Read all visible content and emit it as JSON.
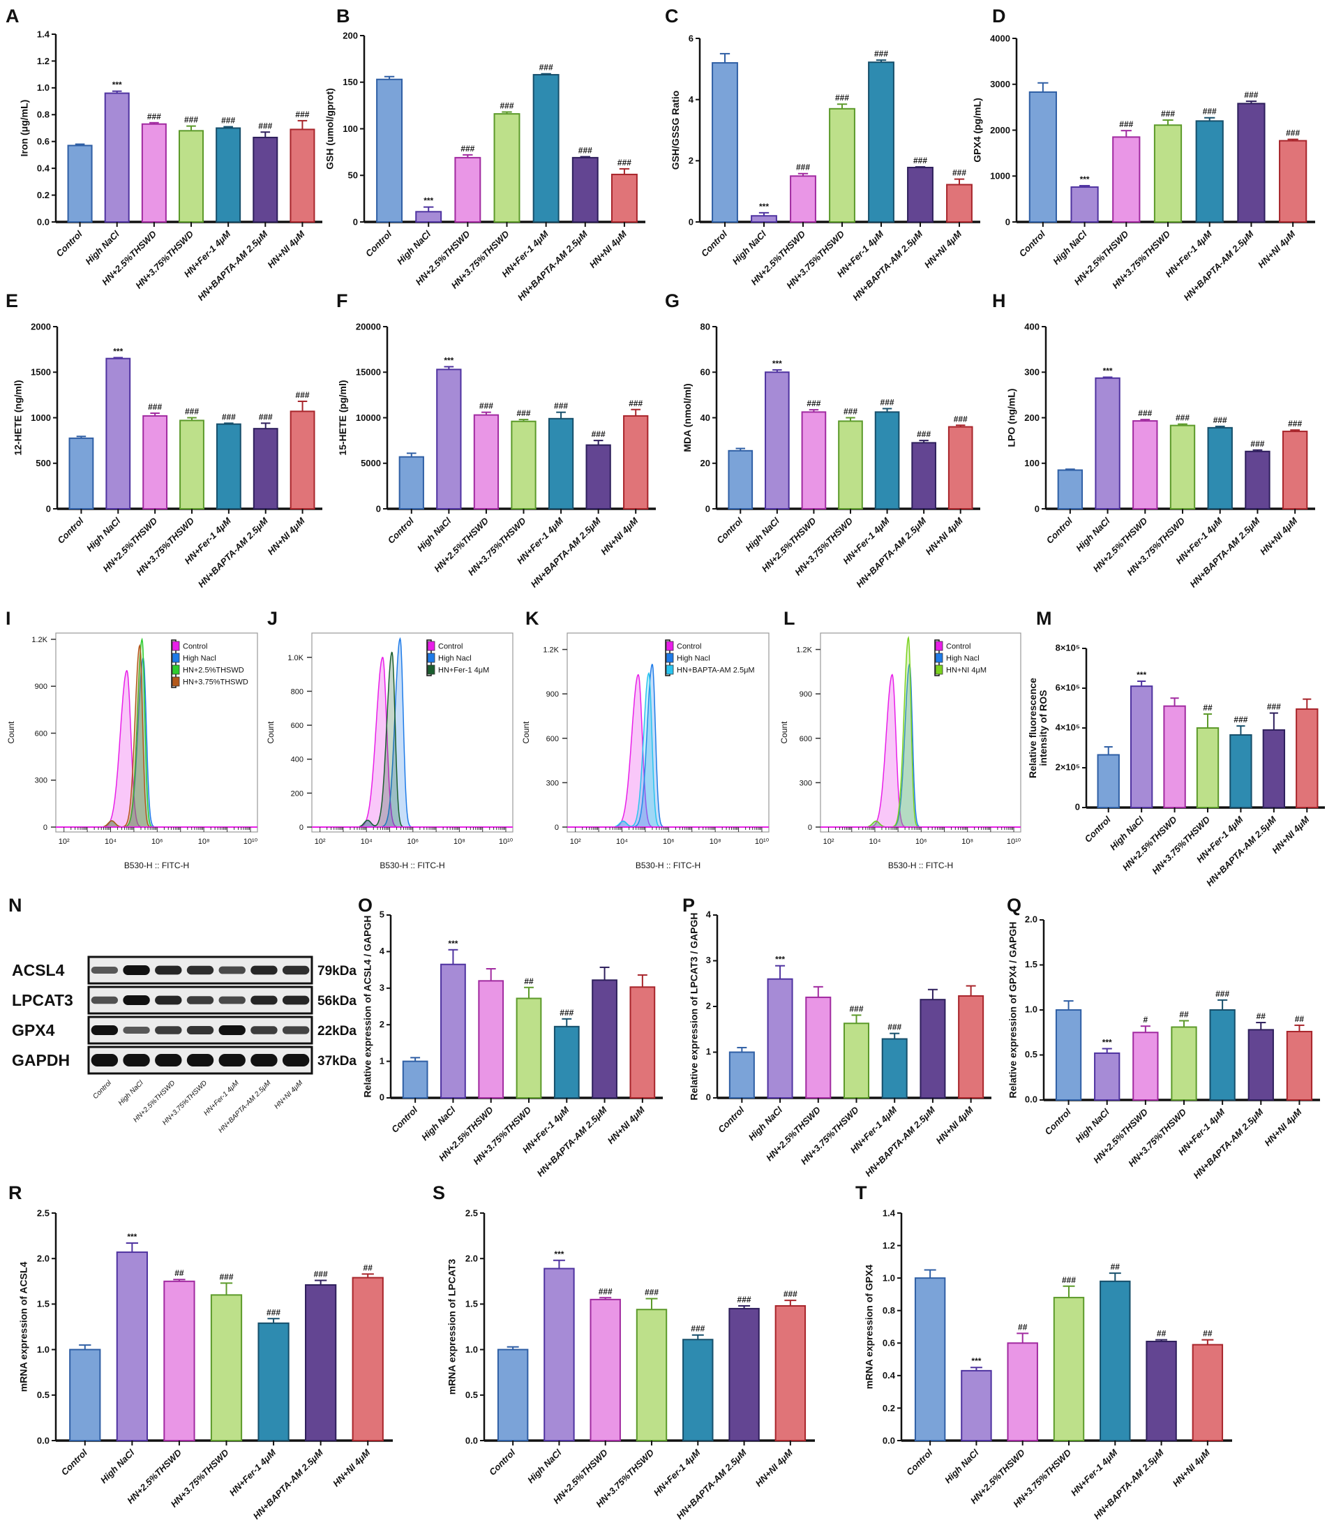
{
  "group_colors": {
    "fill": [
      "#7ba3d8",
      "#a68bd6",
      "#e996e6",
      "#bde08a",
      "#2e8bb0",
      "#634592",
      "#e07478"
    ],
    "stroke": [
      "#2f5fa5",
      "#4f33a0",
      "#a12aa0",
      "#5c9a2a",
      "#164f6b",
      "#2e1f5c",
      "#a8252b"
    ]
  },
  "western_blot": {
    "panel": "N",
    "lanes": [
      "Control",
      "High NaCl",
      "HN+2.5%THSWD",
      "HN+3.75%THSWD",
      "HN+Fer-1 4μM",
      "HN+BAPTA-AM 2.5μM",
      "HN+NI 4μM"
    ],
    "proteins": [
      {
        "name": "ACSL4",
        "kda": "79kDa",
        "intensity": [
          0.5,
          1.0,
          0.85,
          0.8,
          0.6,
          0.85,
          0.8
        ]
      },
      {
        "name": "LPCAT3",
        "kda": "56kDa",
        "intensity": [
          0.55,
          1.0,
          0.85,
          0.7,
          0.6,
          0.85,
          0.85
        ]
      },
      {
        "name": "GPX4",
        "kda": "22kDa",
        "intensity": [
          1.0,
          0.5,
          0.7,
          0.75,
          1.0,
          0.7,
          0.65
        ]
      },
      {
        "name": "GAPDH",
        "kda": "37kDa",
        "intensity": [
          1.0,
          1.0,
          1.0,
          1.0,
          1.0,
          1.0,
          1.0
        ]
      }
    ]
  },
  "chart_data": [
    {
      "panel": "A",
      "type": "bar",
      "ylabel": "Iron (μg/mL)",
      "ylim": [
        0,
        1.4
      ],
      "yticks": [
        0,
        0.2,
        0.4,
        0.6,
        0.8,
        1.0,
        1.2,
        1.4
      ],
      "yticklabels": [
        "0.0",
        "0.2",
        "0.4",
        "0.6",
        "0.8",
        "1.0",
        "1.2",
        "1.4"
      ],
      "categories": [
        "Control",
        "High NaCl",
        "HN+2.5%THSWD",
        "HN+3.75%THSWD",
        "HN+Fer-1 4μM",
        "HN+BAPTA-AM 2.5μM",
        "HN+NI 4μM"
      ],
      "values": [
        0.57,
        0.96,
        0.73,
        0.68,
        0.7,
        0.63,
        0.69
      ],
      "errors": [
        0.01,
        0.015,
        0.01,
        0.035,
        0.01,
        0.04,
        0.065
      ],
      "significance": [
        "",
        "***",
        "###",
        "###",
        "###",
        "###",
        "###"
      ]
    },
    {
      "panel": "B",
      "type": "bar",
      "ylabel": "GSH (umol/gprot)",
      "ylim": [
        0,
        200
      ],
      "yticks": [
        0,
        50,
        100,
        150,
        200
      ],
      "yticklabels": [
        "0",
        "50",
        "100",
        "150",
        "200"
      ],
      "categories": [
        "Control",
        "High NaCl",
        "HN+2.5%THSWD",
        "HN+3.75%THSWD",
        "HN+Fer-1 4μM",
        "HN+BAPTA-AM 2.5μM",
        "HN+NI 4μM"
      ],
      "values": [
        153,
        11,
        69,
        116,
        158,
        69,
        51
      ],
      "errors": [
        3,
        5,
        3,
        2,
        1,
        1,
        6
      ],
      "significance": [
        "",
        "***",
        "###",
        "###",
        "###",
        "###",
        "###"
      ]
    },
    {
      "panel": "C",
      "type": "bar",
      "ylabel": "GSH/GSSG Ratio",
      "ylim": [
        0,
        6
      ],
      "yticks": [
        0,
        2,
        4,
        6
      ],
      "yticklabels": [
        "0",
        "2",
        "4",
        "6"
      ],
      "categories": [
        "Control",
        "High NaCl",
        "HN+2.5%THSWD",
        "HN+3.75%THSWD",
        "HN+Fer-1 4μM",
        "HN+BAPTA-AM 2.5μM",
        "HN+NI 4μM"
      ],
      "values": [
        5.2,
        0.2,
        1.5,
        3.7,
        5.22,
        1.78,
        1.22
      ],
      "errors": [
        0.3,
        0.1,
        0.08,
        0.15,
        0.07,
        0.02,
        0.18
      ],
      "significance": [
        "",
        "***",
        "###",
        "###",
        "###",
        "###",
        "###"
      ]
    },
    {
      "panel": "D",
      "type": "bar",
      "ylabel": "GPX4 (pg/mL)",
      "ylim": [
        0,
        4000
      ],
      "yticks": [
        0,
        1000,
        2000,
        3000,
        4000
      ],
      "yticklabels": [
        "0",
        "1000",
        "2000",
        "3000",
        "4000"
      ],
      "categories": [
        "Control",
        "High NaCl",
        "HN+2.5%THSWD",
        "HN+3.75%THSWD",
        "HN+Fer-1 4μM",
        "HN+BAPTA-AM 2.5μM",
        "HN+NI 4μM"
      ],
      "values": [
        2830,
        760,
        1850,
        2110,
        2200,
        2580,
        1770
      ],
      "errors": [
        200,
        30,
        140,
        110,
        70,
        50,
        30
      ],
      "significance": [
        "",
        "***",
        "###",
        "###",
        "###",
        "###",
        "###"
      ]
    },
    {
      "panel": "E",
      "type": "bar",
      "ylabel": "12-HETE (ng/ml)",
      "ylim": [
        0,
        2000
      ],
      "yticks": [
        0,
        500,
        1000,
        1500,
        2000
      ],
      "yticklabels": [
        "0",
        "500",
        "1000",
        "1500",
        "2000"
      ],
      "categories": [
        "Control",
        "High NaCl",
        "HN+2.5%THSWD",
        "HN+3.75%THSWD",
        "HN+Fer-1 4μM",
        "HN+BAPTA-AM 2.5μM",
        "HN+NI 4μM"
      ],
      "values": [
        775,
        1650,
        1020,
        970,
        930,
        880,
        1070
      ],
      "errors": [
        20,
        10,
        30,
        30,
        10,
        60,
        110
      ],
      "significance": [
        "",
        "***",
        "###",
        "###",
        "###",
        "###",
        "###"
      ]
    },
    {
      "panel": "F",
      "type": "bar",
      "ylabel": "15-HETE (pg/ml)",
      "ylim": [
        0,
        20000
      ],
      "yticks": [
        0,
        5000,
        10000,
        15000,
        20000
      ],
      "yticklabels": [
        "0",
        "5000",
        "10000",
        "15000",
        "20000"
      ],
      "categories": [
        "Control",
        "High NaCl",
        "HN+2.5%THSWD",
        "HN+3.75%THSWD",
        "HN+Fer-1 4μM",
        "HN+BAPTA-AM 2.5μM",
        "HN+NI 4μM"
      ],
      "values": [
        5700,
        15300,
        10300,
        9600,
        9900,
        7000,
        10200
      ],
      "errors": [
        400,
        300,
        300,
        200,
        700,
        500,
        700
      ],
      "significance": [
        "",
        "***",
        "###",
        "###",
        "###",
        "###",
        "###"
      ]
    },
    {
      "panel": "G",
      "type": "bar",
      "ylabel": "MDA (nmol/ml)",
      "ylim": [
        0,
        80
      ],
      "yticks": [
        0,
        20,
        40,
        60,
        80
      ],
      "yticklabels": [
        "0",
        "20",
        "40",
        "60",
        "80"
      ],
      "categories": [
        "Control",
        "High NaCl",
        "HN+2.5%THSWD",
        "HN+3.75%THSWD",
        "HN+Fer-1 4μM",
        "HN+BAPTA-AM 2.5μM",
        "HN+NI 4μM"
      ],
      "values": [
        25.5,
        60,
        42.5,
        38.5,
        42.5,
        29,
        36
      ],
      "errors": [
        1,
        1,
        1,
        1.5,
        1.5,
        1,
        0.7
      ],
      "significance": [
        "",
        "***",
        "###",
        "###",
        "###",
        "###",
        "###"
      ]
    },
    {
      "panel": "H",
      "type": "bar",
      "ylabel": "LPO (ng/mL)",
      "ylim": [
        0,
        400
      ],
      "yticks": [
        0,
        100,
        200,
        300,
        400
      ],
      "yticklabels": [
        "0",
        "100",
        "200",
        "300",
        "400"
      ],
      "categories": [
        "Control",
        "High NaCl",
        "HN+2.5%THSWD",
        "HN+3.75%THSWD",
        "HN+Fer-1 4μM",
        "HN+BAPTA-AM 2.5μM",
        "HN+NI 4μM"
      ],
      "values": [
        85,
        287,
        193,
        183,
        178,
        126,
        170
      ],
      "errors": [
        2,
        2,
        3,
        3,
        3,
        3,
        3
      ],
      "significance": [
        "",
        "***",
        "###",
        "###",
        "###",
        "###",
        "###"
      ]
    },
    {
      "panel": "I",
      "type": "histogram",
      "xlabel": "B530-H :: FITC-H",
      "ylabel": "Count",
      "ymax": 1240,
      "yticks": [
        0,
        300,
        600,
        900,
        1200
      ],
      "yticklabels": [
        "0",
        "300",
        "600",
        "900",
        "1.2K"
      ],
      "xticks_log10": [
        2,
        4,
        6,
        8,
        10
      ],
      "xticklabels": [
        "10²",
        "10⁴",
        "10⁶",
        "10⁸",
        "10¹⁰"
      ],
      "series": [
        {
          "name": "Control",
          "color": "#e81ee8",
          "mode_log10": 4.7,
          "peak": 1000,
          "spread": 0.28
        },
        {
          "name": "High Nacl",
          "color": "#1e7be8",
          "mode_log10": 5.4,
          "peak": 1080,
          "spread": 0.22
        },
        {
          "name": "HN+2.5%THSWD",
          "color": "#2ecc2e",
          "mode_log10": 5.35,
          "peak": 1200,
          "spread": 0.2
        },
        {
          "name": "HN+3.75%THSWD",
          "color": "#b3581a",
          "mode_log10": 5.25,
          "peak": 1160,
          "spread": 0.2
        }
      ]
    },
    {
      "panel": "J",
      "type": "histogram",
      "xlabel": "B530-H :: FITC-H",
      "ylabel": "Count",
      "ymax": 1143,
      "yticks": [
        0,
        200,
        400,
        600,
        800,
        1000
      ],
      "yticklabels": [
        "0",
        "200",
        "400",
        "600",
        "800",
        "1.0K"
      ],
      "xticks_log10": [
        2,
        4,
        6,
        8,
        10
      ],
      "xticklabels": [
        "10²",
        "10⁴",
        "10⁶",
        "10⁸",
        "10¹⁰"
      ],
      "series": [
        {
          "name": "Control",
          "color": "#e81ee8",
          "mode_log10": 4.7,
          "peak": 1000,
          "spread": 0.28
        },
        {
          "name": "High Nacl",
          "color": "#1e7be8",
          "mode_log10": 5.45,
          "peak": 1110,
          "spread": 0.22
        },
        {
          "name": "HN+Fer-1 4μM",
          "color": "#1a5e2e",
          "mode_log10": 5.1,
          "peak": 1030,
          "spread": 0.22
        }
      ]
    },
    {
      "panel": "K",
      "type": "histogram",
      "xlabel": "B530-H :: FITC-H",
      "ylabel": "Count",
      "ymax": 1311,
      "yticks": [
        0,
        300,
        600,
        900,
        1200
      ],
      "yticklabels": [
        "0",
        "300",
        "600",
        "900",
        "1.2K"
      ],
      "xticks_log10": [
        2,
        4,
        6,
        8,
        10
      ],
      "xticklabels": [
        "10²",
        "10⁴",
        "10⁶",
        "10⁸",
        "10¹⁰"
      ],
      "series": [
        {
          "name": "Control",
          "color": "#e81ee8",
          "mode_log10": 4.7,
          "peak": 1030,
          "spread": 0.28
        },
        {
          "name": "High Nacl",
          "color": "#1e7be8",
          "mode_log10": 5.3,
          "peak": 1100,
          "spread": 0.22
        },
        {
          "name": "HN+BAPTA-AM 2.5μM",
          "color": "#29c4ef",
          "mode_log10": 5.15,
          "peak": 1040,
          "spread": 0.22
        }
      ]
    },
    {
      "panel": "L",
      "type": "histogram",
      "xlabel": "B530-H :: FITC-H",
      "ylabel": "Count",
      "ymax": 1311,
      "yticks": [
        0,
        300,
        600,
        900,
        1200
      ],
      "yticklabels": [
        "0",
        "300",
        "600",
        "900",
        "1.2K"
      ],
      "xticks_log10": [
        2,
        4,
        6,
        8,
        10
      ],
      "xticklabels": [
        "10²",
        "10⁴",
        "10⁶",
        "10⁸",
        "10¹⁰"
      ],
      "series": [
        {
          "name": "Control",
          "color": "#e81ee8",
          "mode_log10": 4.75,
          "peak": 1030,
          "spread": 0.26
        },
        {
          "name": "High Nacl",
          "color": "#1e7be8",
          "mode_log10": 5.5,
          "peak": 1100,
          "spread": 0.2
        },
        {
          "name": "HN+NI 4μM",
          "color": "#7ad21e",
          "mode_log10": 5.45,
          "peak": 1280,
          "spread": 0.19
        }
      ]
    },
    {
      "panel": "M",
      "type": "bar",
      "ylabel": [
        "Relative fluorescence",
        "intensity of ROS"
      ],
      "ylim": [
        0,
        800000
      ],
      "yticks": [
        0,
        200000,
        400000,
        600000,
        800000
      ],
      "yticklabels": [
        "0",
        "2×10⁵",
        "4×10⁵",
        "6×10⁵",
        "8×10⁵"
      ],
      "categories": [
        "Control",
        "High NaCl",
        "HN+2.5%THSWD",
        "HN+3.75%THSWD",
        "HN+Fer-1 4μM",
        "HN+BAPTA-AM 2.5μM",
        "HN+NI 4μM"
      ],
      "values": [
        265000,
        610000,
        510000,
        400000,
        365000,
        390000,
        495000
      ],
      "errors": [
        40000,
        25000,
        40000,
        70000,
        45000,
        85000,
        50000
      ],
      "significance": [
        "",
        "***",
        "",
        "##",
        "###",
        "###",
        ""
      ]
    },
    {
      "panel": "O",
      "type": "bar",
      "ylabel": "Relative expression of ACSL4 / GAPGH",
      "ylim": [
        0,
        5
      ],
      "yticks": [
        0,
        1,
        2,
        3,
        4,
        5
      ],
      "yticklabels": [
        "0",
        "1",
        "2",
        "3",
        "4",
        "5"
      ],
      "categories": [
        "Control",
        "High NaCl",
        "HN+2.5%THSWD",
        "HN+3.75%THSWD",
        "HN+Fer-1 4μM",
        "HN+BAPTA-AM 2.5μM",
        "HN+NI 4μM"
      ],
      "values": [
        1.0,
        3.65,
        3.2,
        2.72,
        1.95,
        3.22,
        3.03
      ],
      "errors": [
        0.1,
        0.4,
        0.33,
        0.3,
        0.21,
        0.35,
        0.33
      ],
      "significance": [
        "",
        "***",
        "",
        "##",
        "###",
        "",
        ""
      ]
    },
    {
      "panel": "P",
      "type": "bar",
      "ylabel": "Relative expression of LPCAT3 / GAPGH",
      "ylim": [
        0,
        4
      ],
      "yticks": [
        0,
        1,
        2,
        3,
        4
      ],
      "yticklabels": [
        "0",
        "1",
        "2",
        "3",
        "4"
      ],
      "categories": [
        "Control",
        "High NaCl",
        "HN+2.5%THSWD",
        "HN+3.75%THSWD",
        "HN+Fer-1 4μM",
        "HN+BAPTA-AM 2.5μM",
        "HN+NI 4μM"
      ],
      "values": [
        1.0,
        2.6,
        2.2,
        1.63,
        1.29,
        2.15,
        2.23
      ],
      "errors": [
        0.1,
        0.29,
        0.23,
        0.18,
        0.12,
        0.22,
        0.22
      ],
      "significance": [
        "",
        "***",
        "",
        "###",
        "###",
        "",
        ""
      ]
    },
    {
      "panel": "Q",
      "type": "bar",
      "ylabel": "Relative expression of GPX4 / GAPGH",
      "ylim": [
        0,
        2.0
      ],
      "yticks": [
        0,
        0.5,
        1.0,
        1.5,
        2.0
      ],
      "yticklabels": [
        "0.0",
        "0.5",
        "1.0",
        "1.5",
        "2.0"
      ],
      "categories": [
        "Control",
        "High NaCl",
        "HN+2.5%THSWD",
        "HN+3.75%THSWD",
        "HN+Fer-1 4μM",
        "HN+BAPTA-AM 2.5μM",
        "HN+NI 4μM"
      ],
      "values": [
        1.0,
        0.52,
        0.75,
        0.81,
        1.0,
        0.78,
        0.76
      ],
      "errors": [
        0.1,
        0.05,
        0.07,
        0.07,
        0.11,
        0.08,
        0.07
      ],
      "significance": [
        "",
        "***",
        "#",
        "##",
        "###",
        "##",
        "##"
      ]
    },
    {
      "panel": "R",
      "type": "bar",
      "ylabel": "mRNA expression of ACSL4",
      "ylim": [
        0,
        2.5
      ],
      "yticks": [
        0,
        0.5,
        1.0,
        1.5,
        2.0,
        2.5
      ],
      "yticklabels": [
        "0.0",
        "0.5",
        "1.0",
        "1.5",
        "2.0",
        "2.5"
      ],
      "categories": [
        "Control",
        "High NaCl",
        "HN+2.5%THSWD",
        "HN+3.75%THSWD",
        "HN+Fer-1 4μM",
        "HN+BAPTA-AM 2.5μM",
        "HN+NI 4μM"
      ],
      "values": [
        1.0,
        2.07,
        1.75,
        1.6,
        1.29,
        1.71,
        1.79
      ],
      "errors": [
        0.05,
        0.1,
        0.02,
        0.13,
        0.05,
        0.05,
        0.04
      ],
      "significance": [
        "",
        "***",
        "##",
        "###",
        "###",
        "###",
        "##"
      ]
    },
    {
      "panel": "S",
      "type": "bar",
      "ylabel": "mRNA expression of LPCAT3",
      "ylim": [
        0,
        2.5
      ],
      "yticks": [
        0,
        0.5,
        1.0,
        1.5,
        2.0,
        2.5
      ],
      "yticklabels": [
        "0.0",
        "0.5",
        "1.0",
        "1.5",
        "2.0",
        "2.5"
      ],
      "categories": [
        "Control",
        "High NaCl",
        "HN+2.5%THSWD",
        "HN+3.75%THSWD",
        "HN+Fer-1 4μM",
        "HN+BAPTA-AM 2.5μM",
        "HN+NI 4μM"
      ],
      "values": [
        1.0,
        1.89,
        1.55,
        1.44,
        1.11,
        1.45,
        1.48
      ],
      "errors": [
        0.03,
        0.09,
        0.02,
        0.12,
        0.05,
        0.03,
        0.06
      ],
      "significance": [
        "",
        "***",
        "###",
        "###",
        "###",
        "###",
        "###"
      ]
    },
    {
      "panel": "T",
      "type": "bar",
      "ylabel": "mRNA expression of GPX4",
      "ylim": [
        0,
        1.4
      ],
      "yticks": [
        0,
        0.2,
        0.4,
        0.6,
        0.8,
        1.0,
        1.2,
        1.4
      ],
      "yticklabels": [
        "0.0",
        "0.2",
        "0.4",
        "0.6",
        "0.8",
        "1.0",
        "1.2",
        "1.4"
      ],
      "categories": [
        "Control",
        "High NaCl",
        "HN+2.5%THSWD",
        "HN+3.75%THSWD",
        "HN+Fer-1 4μM",
        "HN+BAPTA-AM 2.5μM",
        "HN+NI 4μM"
      ],
      "values": [
        1.0,
        0.43,
        0.6,
        0.88,
        0.98,
        0.61,
        0.59
      ],
      "errors": [
        0.05,
        0.02,
        0.06,
        0.07,
        0.05,
        0.01,
        0.03
      ],
      "significance": [
        "",
        "***",
        "##",
        "###",
        "##",
        "##",
        "##"
      ]
    }
  ]
}
